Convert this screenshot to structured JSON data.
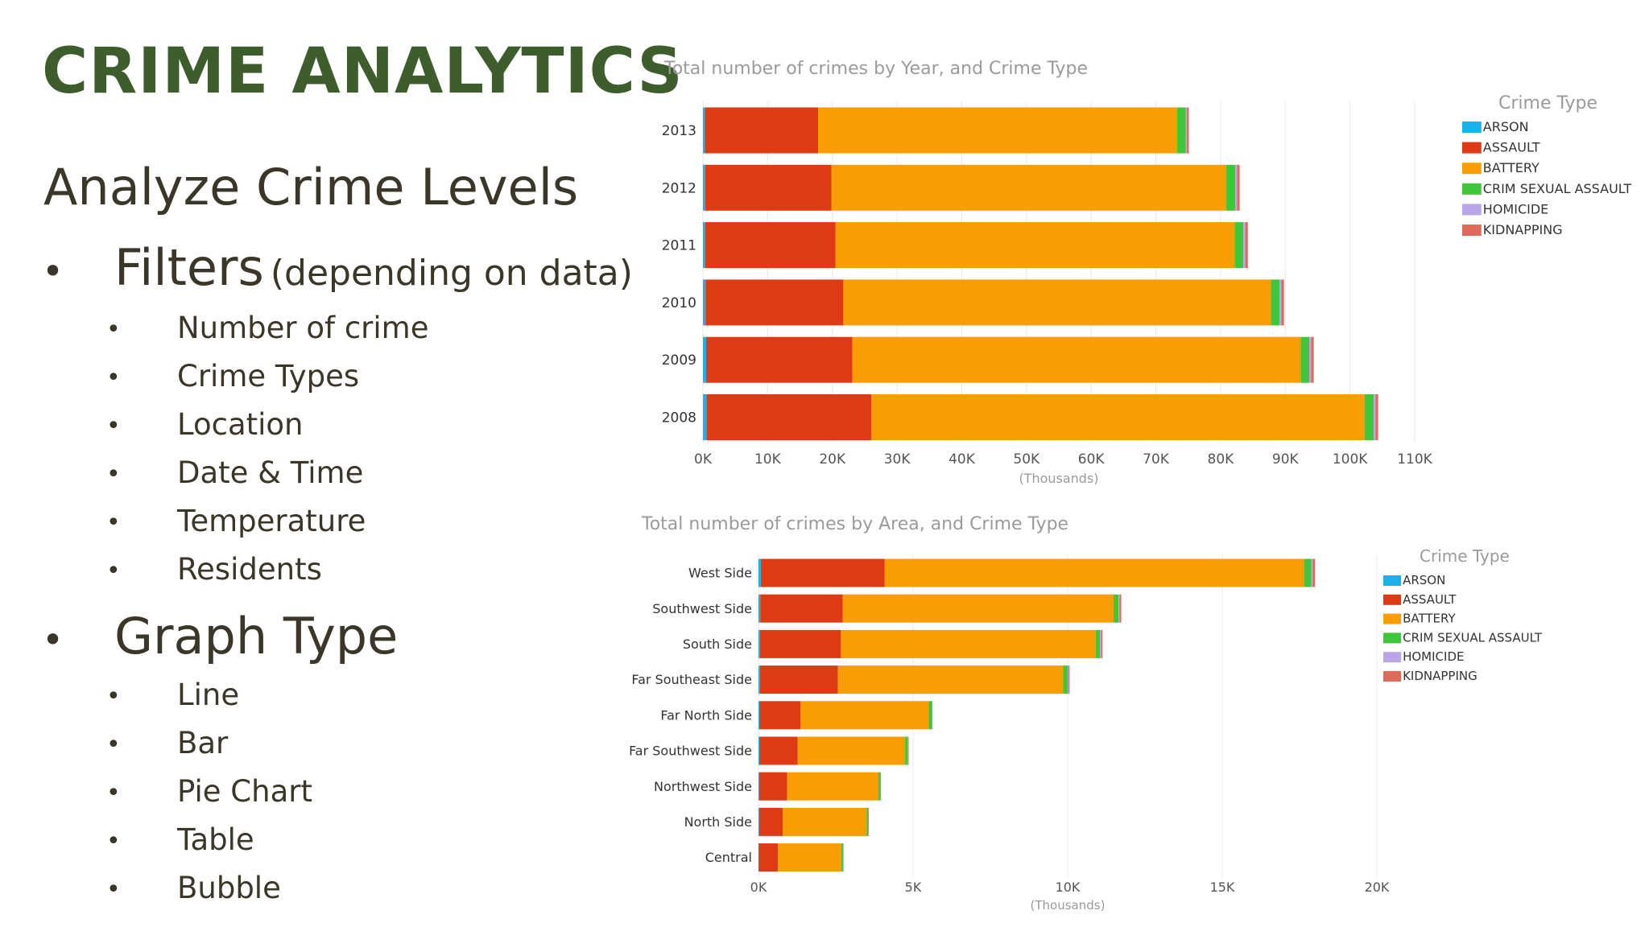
{
  "slide": {
    "title": "CRIME ANALYTICS",
    "subtitle": "Analyze Crime Levels",
    "sections": [
      {
        "label": "Filters",
        "note": "(depending on data)",
        "items": [
          "Number of crime",
          "Crime Types",
          "Location",
          "Date & Time",
          "Temperature",
          "Residents"
        ]
      },
      {
        "label": "Graph Type",
        "note": "",
        "items": [
          "Line",
          "Bar",
          "Pie Chart",
          "Table",
          "Bubble"
        ]
      }
    ]
  },
  "colors": {
    "ARSON": "#1ab2ea",
    "ASSAULT": "#de3a16",
    "BATTERY": "#fa9c04",
    "CRIM SEXUAL ASSAULT": "#3fc63a",
    "HOMICIDE": "#b8a6e8",
    "KIDNAPPING": "#e06a5a",
    "title": "#3e5d2c",
    "text": "#3b3628",
    "chartText": "#9a9a9a",
    "grid": "#e8e8e8"
  },
  "chart_data": [
    {
      "type": "bar",
      "orientation": "horizontal",
      "stacked": true,
      "title": "Total number of crimes by Year, and Crime Type",
      "xlabel": "(Thousands)",
      "legend_title": "Crime Type",
      "legend_position": "right",
      "grid": true,
      "categories": [
        "2013",
        "2012",
        "2011",
        "2010",
        "2009",
        "2008"
      ],
      "x_ticks": [
        "0K",
        "10K",
        "20K",
        "30K",
        "40K",
        "50K",
        "60K",
        "70K",
        "80K",
        "90K",
        "100K",
        "110K"
      ],
      "xlim": [
        0,
        110000
      ],
      "series": [
        {
          "name": "ARSON",
          "values": [
            300,
            350,
            370,
            400,
            500,
            550
          ]
        },
        {
          "name": "ASSAULT",
          "values": [
            17500,
            19500,
            20100,
            21300,
            22600,
            25500
          ]
        },
        {
          "name": "BATTERY",
          "values": [
            55500,
            61000,
            61700,
            66100,
            69300,
            76200
          ]
        },
        {
          "name": "CRIM SEXUAL ASSAULT",
          "values": [
            1300,
            1400,
            1350,
            1300,
            1300,
            1400
          ]
        },
        {
          "name": "HOMICIDE",
          "values": [
            200,
            300,
            300,
            300,
            300,
            300
          ]
        },
        {
          "name": "KIDNAPPING",
          "values": [
            300,
            400,
            400,
            400,
            400,
            400
          ]
        }
      ]
    },
    {
      "type": "bar",
      "orientation": "horizontal",
      "stacked": true,
      "title": "Total number of crimes by Area, and Crime Type",
      "xlabel": "(Thousands)",
      "legend_title": "Crime Type",
      "legend_position": "right",
      "grid": true,
      "categories": [
        "West Side",
        "Southwest Side",
        "South Side",
        "Far Southeast Side",
        "Far North Side",
        "Far Southwest Side",
        "Northwest Side",
        "North Side",
        "Central"
      ],
      "x_ticks": [
        "0K",
        "5K",
        "10K",
        "15K",
        "20K"
      ],
      "xlim": [
        0,
        21000
      ],
      "series": [
        {
          "name": "ARSON",
          "values": [
            80,
            60,
            50,
            50,
            30,
            30,
            20,
            20,
            10
          ]
        },
        {
          "name": "ASSAULT",
          "values": [
            4200,
            2800,
            2750,
            2650,
            1400,
            1300,
            950,
            800,
            650
          ]
        },
        {
          "name": "BATTERY",
          "values": [
            14250,
            9200,
            8650,
            7650,
            4350,
            3650,
            3100,
            2850,
            2150
          ]
        },
        {
          "name": "CRIM SEXUAL ASSAULT",
          "values": [
            250,
            170,
            150,
            150,
            100,
            90,
            70,
            60,
            60
          ]
        },
        {
          "name": "HOMICIDE",
          "values": [
            40,
            30,
            30,
            25,
            10,
            10,
            5,
            5,
            3
          ]
        },
        {
          "name": "KIDNAPPING",
          "values": [
            80,
            60,
            50,
            40,
            20,
            20,
            15,
            10,
            10
          ]
        }
      ]
    }
  ]
}
